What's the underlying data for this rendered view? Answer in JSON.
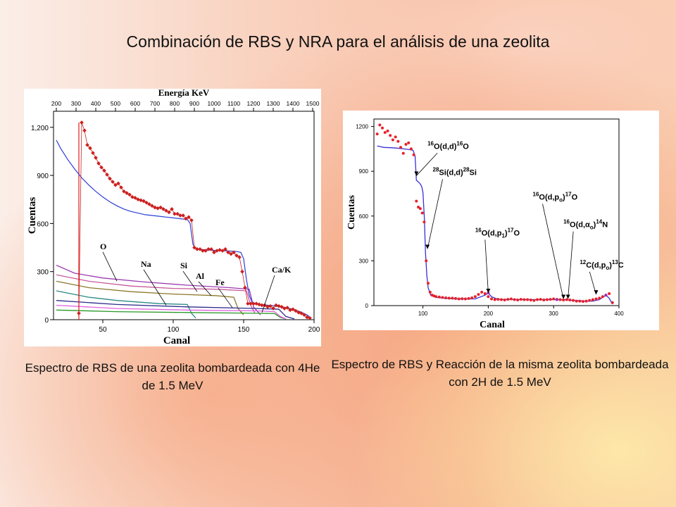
{
  "slide": {
    "title": "Combinación de RBS y NRA para el análisis de una zeolita",
    "caption_left": "Espectro de RBS de una zeolita bombardeada con 4He de 1.5 MeV",
    "caption_right": "Espectro de RBS y Reacción de la misma zeolita bombardeada con 2H de 1.5 MeV"
  },
  "chart_data": [
    {
      "type": "scatter",
      "xlabel": "Canal",
      "ylabel": "Cuentas",
      "top_axis_label": "Energía   KeV",
      "xlim": [
        15,
        200
      ],
      "ylim": [
        0,
        1300
      ],
      "x_ticks": [
        50,
        100,
        150,
        200
      ],
      "y_ticks": [
        0,
        300,
        600,
        900,
        1200
      ],
      "y_tick_labels": [
        "0",
        "300",
        "600",
        "900",
        "1,200"
      ],
      "energy_ticks": [
        200,
        300,
        400,
        500,
        600,
        700,
        800,
        900,
        1000,
        1100,
        1200,
        1300,
        1400,
        1500
      ],
      "energy_channel_map": {
        "e0": 200,
        "c0": 17,
        "e1": 1500,
        "c1": 199
      },
      "colors": {
        "data": "#cc1f1f",
        "fit": "#2b3fd6",
        "vline": "#e02020"
      },
      "vline_x": 33,
      "series": [
        {
          "x": [
            33,
            35,
            37,
            39,
            41,
            43,
            45,
            47,
            49,
            51,
            53,
            55,
            57,
            59,
            61,
            63,
            65,
            67,
            69,
            71,
            73,
            75,
            77,
            79,
            81,
            83,
            85,
            87,
            89,
            91,
            93,
            95,
            97,
            99,
            101,
            103,
            105,
            107,
            109,
            111,
            113,
            115,
            117,
            119,
            121,
            123,
            125,
            127,
            129,
            131,
            133,
            135,
            137,
            139,
            141,
            143,
            145,
            147,
            149,
            151,
            153,
            155,
            157,
            159,
            161,
            163,
            165,
            167,
            169,
            171,
            173,
            175,
            177,
            179,
            181,
            183,
            185,
            187,
            189,
            191,
            193,
            195,
            197
          ],
          "y": [
            40,
            1230,
            1180,
            1090,
            1070,
            1040,
            1010,
            975,
            950,
            930,
            905,
            880,
            860,
            840,
            850,
            825,
            800,
            790,
            780,
            765,
            760,
            750,
            745,
            740,
            730,
            720,
            710,
            700,
            695,
            700,
            690,
            680,
            670,
            690,
            660,
            660,
            650,
            650,
            630,
            640,
            620,
            450,
            440,
            440,
            430,
            430,
            440,
            440,
            420,
            430,
            435,
            430,
            440,
            420,
            410,
            420,
            400,
            390,
            300,
            200,
            100,
            100,
            100,
            100,
            95,
            90,
            90,
            80,
            85,
            70,
            90,
            85,
            80,
            70,
            75,
            60,
            65,
            55,
            45,
            40,
            30,
            15,
            10
          ]
        },
        {
          "x": [
            17,
            20,
            25,
            30,
            35,
            40,
            45,
            50,
            55,
            60,
            65,
            70,
            75,
            80,
            85,
            90,
            95,
            100,
            105,
            110,
            112,
            114,
            116,
            118,
            120,
            125,
            130,
            135,
            140,
            145,
            148,
            150,
            152,
            154,
            156,
            158,
            160,
            165,
            170,
            175,
            180,
            185,
            190,
            195,
            198
          ],
          "y": [
            1120,
            1070,
            1000,
            940,
            885,
            840,
            800,
            765,
            735,
            710,
            690,
            675,
            665,
            655,
            650,
            645,
            640,
            635,
            630,
            625,
            600,
            470,
            445,
            440,
            438,
            435,
            432,
            430,
            428,
            425,
            420,
            380,
            250,
            150,
            110,
            100,
            98,
            92,
            88,
            82,
            75,
            65,
            50,
            30,
            10
          ]
        }
      ],
      "element_curves": [
        {
          "name": "O",
          "color": "#9b3bb0",
          "points": [
            [
              17,
              340
            ],
            [
              30,
              290
            ],
            [
              50,
              260
            ],
            [
              80,
              235
            ],
            [
              110,
              215
            ],
            [
              140,
              200
            ],
            [
              154,
              190
            ],
            [
              157,
              80
            ],
            [
              162,
              30
            ]
          ]
        },
        {
          "name": "Na",
          "color": "#2a8a86",
          "points": [
            [
              17,
              180
            ],
            [
              40,
              140
            ],
            [
              60,
              120
            ],
            [
              90,
              100
            ],
            [
              110,
              95
            ],
            [
              113,
              40
            ],
            [
              116,
              10
            ]
          ]
        },
        {
          "name": "Si",
          "color": "#c85a9a",
          "points": [
            [
              17,
              280
            ],
            [
              40,
              240
            ],
            [
              70,
              210
            ],
            [
              100,
              195
            ],
            [
              130,
              190
            ],
            [
              152,
              180
            ],
            [
              155,
              90
            ],
            [
              158,
              40
            ]
          ]
        },
        {
          "name": "Al",
          "color": "#8c7a2a",
          "points": [
            [
              17,
              240
            ],
            [
              40,
              200
            ],
            [
              70,
              175
            ],
            [
              100,
              160
            ],
            [
              130,
              150
            ],
            [
              143,
              140
            ],
            [
              146,
              70
            ],
            [
              150,
              30
            ]
          ]
        },
        {
          "name": "Fe",
          "color": "#2c2c8c",
          "points": [
            [
              17,
              120
            ],
            [
              60,
              95
            ],
            [
              110,
              80
            ],
            [
              160,
              70
            ],
            [
              175,
              65
            ],
            [
              180,
              20
            ],
            [
              186,
              5
            ]
          ]
        },
        {
          "name": "Ca/K",
          "color": "#2a9a2a",
          "points": [
            [
              17,
              60
            ],
            [
              60,
              50
            ],
            [
              110,
              45
            ],
            [
              160,
              40
            ],
            [
              172,
              38
            ],
            [
              176,
              15
            ],
            [
              180,
              5
            ]
          ]
        },
        {
          "name": "",
          "color": "#e060e0",
          "points": [
            [
              17,
              90
            ],
            [
              60,
              70
            ],
            [
              110,
              60
            ],
            [
              160,
              55
            ],
            [
              172,
              50
            ],
            [
              176,
              20
            ],
            [
              180,
              5
            ]
          ]
        }
      ],
      "annotations": [
        {
          "text": "O",
          "x": 48,
          "y": 440,
          "tx": 60,
          "ty": 240
        },
        {
          "text": "Na",
          "x": 77,
          "y": 330,
          "tx": 95,
          "ty": 90
        },
        {
          "text": "Si",
          "x": 105,
          "y": 320,
          "tx": 117,
          "ty": 175
        },
        {
          "text": "Al",
          "x": 116,
          "y": 255,
          "tx": 127,
          "ty": 150
        },
        {
          "text": "Fe",
          "x": 130,
          "y": 215,
          "tx": 142,
          "ty": 75
        },
        {
          "text": "Ca/K",
          "x": 170,
          "y": 295,
          "tx": 163,
          "ty": 45
        }
      ]
    },
    {
      "type": "scatter",
      "xlabel": "Canal",
      "ylabel": "Cuentas",
      "xlim": [
        25,
        400
      ],
      "ylim": [
        0,
        1250
      ],
      "x_ticks": [
        100,
        200,
        300,
        400
      ],
      "y_ticks": [
        0,
        300,
        600,
        900,
        1200
      ],
      "colors": {
        "data": "#e8202a",
        "fit": "#3a2fd6",
        "peak_marker": "#9a2fb0"
      },
      "series": [
        {
          "x": [
            30,
            34,
            38,
            42,
            46,
            50,
            54,
            58,
            62,
            66,
            70,
            74,
            78,
            82,
            86,
            90,
            93,
            96,
            99,
            102,
            105,
            108,
            111,
            114,
            117,
            120,
            125,
            130,
            135,
            140,
            145,
            150,
            155,
            160,
            165,
            170,
            175,
            180,
            185,
            190,
            195,
            200,
            205,
            210,
            215,
            220,
            225,
            230,
            235,
            240,
            245,
            250,
            255,
            260,
            265,
            270,
            275,
            280,
            285,
            290,
            295,
            300,
            305,
            310,
            315,
            320,
            325,
            330,
            335,
            340,
            345,
            350,
            355,
            360,
            365,
            370,
            375,
            380,
            385,
            390
          ],
          "y": [
            1150,
            1210,
            1190,
            1160,
            1170,
            1140,
            1110,
            1130,
            1100,
            1060,
            1020,
            1080,
            1090,
            1050,
            1010,
            700,
            660,
            650,
            620,
            560,
            300,
            150,
            90,
            70,
            65,
            60,
            58,
            55,
            52,
            50,
            50,
            48,
            45,
            46,
            45,
            48,
            52,
            60,
            75,
            90,
            80,
            60,
            45,
            40,
            42,
            40,
            38,
            42,
            45,
            40,
            38,
            42,
            40,
            40,
            38,
            35,
            40,
            42,
            38,
            40,
            42,
            45,
            42,
            40,
            38,
            40,
            38,
            35,
            30,
            30,
            28,
            30,
            35,
            40,
            45,
            50,
            60,
            70,
            80,
            20
          ]
        },
        {
          "x": [
            30,
            35,
            40,
            50,
            60,
            70,
            80,
            85,
            88,
            90,
            95,
            98,
            100,
            102,
            104,
            106,
            108,
            112,
            120,
            130,
            150,
            180,
            195,
            200,
            205,
            215,
            250,
            300,
            320,
            330,
            340,
            350,
            360,
            370,
            375,
            380,
            385,
            390
          ],
          "y": [
            1070,
            1065,
            1060,
            1058,
            1055,
            1050,
            1045,
            1040,
            1000,
            840,
            820,
            800,
            760,
            600,
            350,
            200,
            120,
            70,
            55,
            50,
            45,
            45,
            70,
            85,
            60,
            42,
            40,
            40,
            38,
            35,
            32,
            30,
            30,
            40,
            55,
            70,
            50,
            10
          ]
        }
      ],
      "reactions": [
        {
          "base": "O(d,d)",
          "sup_pre": "16",
          "sup_post": "16",
          "tail": "O",
          "sub": "",
          "x": 107,
          "y": 1050,
          "tx": 90,
          "ty": 870
        },
        {
          "base": "Si(d,d)",
          "sup_pre": "28",
          "sup_post": "28",
          "tail": "Si",
          "sub": "",
          "x": 115,
          "y": 875,
          "tx": 107,
          "ty": 380
        },
        {
          "base": "O(d,p",
          "sup_pre": "16",
          "sup_post": "17",
          "tail": "O",
          "sub": "o",
          "x": 268,
          "y": 710,
          "tx": 315,
          "ty": 45
        },
        {
          "base": "O(d,p",
          "sup_pre": "16",
          "sup_post": "17",
          "tail": "O",
          "sub": "1",
          "x": 180,
          "y": 470,
          "tx": 200,
          "ty": 85
        },
        {
          "base": "O(d,α",
          "sup_pre": "16",
          "sup_post": "14",
          "tail": "N",
          "sub": "o",
          "x": 315,
          "y": 525,
          "tx": 322,
          "ty": 45
        },
        {
          "base": "C(d,p",
          "sup_pre": "12",
          "sup_post": "13",
          "tail": "C",
          "sub": "o",
          "x": 340,
          "y": 255,
          "tx": 365,
          "ty": 75
        }
      ]
    }
  ]
}
